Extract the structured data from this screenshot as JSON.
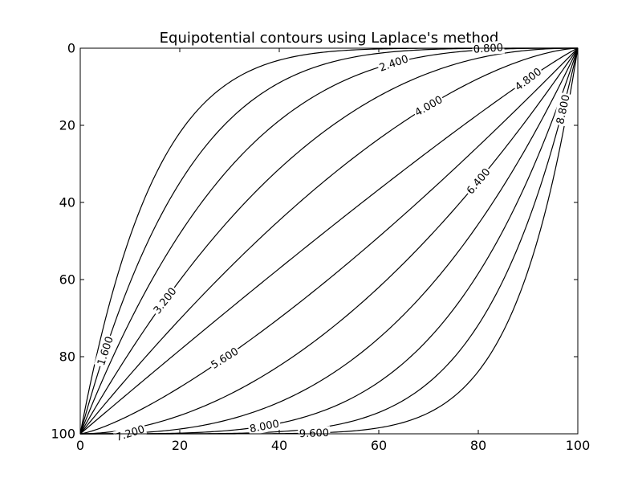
{
  "chart_data": {
    "type": "contour",
    "title": "Equipotential contours using Laplace's method",
    "xlabel": "",
    "ylabel": "",
    "xlim": [
      0,
      100
    ],
    "ylim": [
      100,
      0
    ],
    "y_inverted": true,
    "grid": false,
    "x_ticks": [
      0,
      20,
      40,
      60,
      80,
      100
    ],
    "y_ticks": [
      0,
      20,
      40,
      60,
      80,
      100
    ],
    "x_tick_labels": [
      "0",
      "20",
      "40",
      "60",
      "80",
      "100"
    ],
    "y_tick_labels": [
      "0",
      "20",
      "40",
      "60",
      "80",
      "100"
    ],
    "levels": [
      0.8,
      1.6,
      2.4,
      3.2,
      4.0,
      4.8,
      5.6,
      6.4,
      7.2,
      8.0,
      8.8,
      9.6
    ],
    "labeled_levels": [
      "0.800",
      "1.600",
      "2.400",
      "3.200",
      "4.000",
      "4.800",
      "5.600",
      "6.400",
      "7.200",
      "8.000",
      "8.800",
      "9.600"
    ],
    "line_color": "#000000",
    "background_color": "#ffffff"
  }
}
